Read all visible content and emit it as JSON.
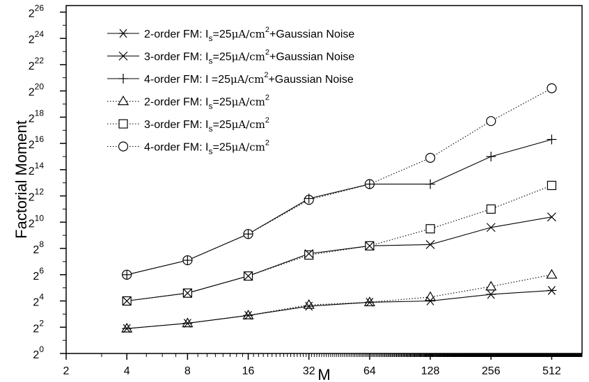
{
  "chart_data": {
    "type": "line",
    "xlabel": "M",
    "ylabel": "Factorial Moment",
    "x_scale": "log2",
    "y_scale": "log2",
    "xlim": [
      2,
      724
    ],
    "ylim_exponent": [
      0,
      26.5
    ],
    "x_ticks": [
      "2",
      "4",
      "8",
      "16",
      "32",
      "64",
      "128",
      "256",
      "512"
    ],
    "y_tick_exponents": [
      "0",
      "2",
      "4",
      "6",
      "8",
      "10",
      "12",
      "14",
      "16",
      "18",
      "20",
      "22",
      "24",
      "26"
    ],
    "y_tick_base": "2",
    "x": [
      4,
      8,
      16,
      32,
      64,
      128,
      256,
      512
    ],
    "series": [
      {
        "name": "2-order FM: I_s=25μA/cm²+Gaussian Noise",
        "legend": {
          "prefix": "2-order FM: I",
          "sub": "s",
          "mid": "=25",
          "unit": "μA/cm",
          "sup": "2",
          "suffix": "+Gaussian Noise"
        },
        "marker": "asterisk",
        "line": "solid",
        "y_exponent": [
          1.9,
          2.3,
          2.9,
          3.6,
          3.9,
          4.0,
          4.5,
          4.8
        ]
      },
      {
        "name": "3-order FM: I_s=25μA/cm²+Gaussian Noise",
        "legend": {
          "prefix": "3-order FM: I",
          "sub": "s",
          "mid": "=25",
          "unit": "μA/cm",
          "sup": "2",
          "suffix": "+Gaussian Noise"
        },
        "marker": "x",
        "line": "solid",
        "y_exponent": [
          4.0,
          4.6,
          5.9,
          7.6,
          8.2,
          8.3,
          9.6,
          10.4
        ]
      },
      {
        "name": "4-order FM: I =25μA/cm²+Gaussian Noise",
        "legend": {
          "prefix": "4-order FM: I ",
          "sub": "",
          "mid": "=25",
          "unit": "μA/cm",
          "sup": "2",
          "suffix": "+Gaussian Noise"
        },
        "marker": "plus",
        "line": "solid",
        "y_exponent": [
          6.0,
          7.1,
          9.1,
          11.8,
          12.9,
          12.9,
          15.0,
          16.3
        ]
      },
      {
        "name": "2-order FM: I_s=25μA/cm²",
        "legend": {
          "prefix": "2-order FM: I",
          "sub": "s",
          "mid": "=25",
          "unit": "μA/cm",
          "sup": "2",
          "suffix": ""
        },
        "marker": "triangle",
        "line": "dotted",
        "y_exponent": [
          1.9,
          2.3,
          2.9,
          3.7,
          3.9,
          4.3,
          5.1,
          6.0
        ]
      },
      {
        "name": "3-order FM: I_s=25μA/cm²",
        "legend": {
          "prefix": "3-order FM: I",
          "sub": "s",
          "mid": "=25",
          "unit": "μA/cm",
          "sup": "2",
          "suffix": ""
        },
        "marker": "square",
        "line": "dotted",
        "y_exponent": [
          4.0,
          4.6,
          5.9,
          7.5,
          8.2,
          9.5,
          11.0,
          12.8
        ]
      },
      {
        "name": "4-order FM: I_s=25μA/cm²",
        "legend": {
          "prefix": "4-order FM: I",
          "sub": "s",
          "mid": "=25",
          "unit": "μA/cm",
          "sup": "2",
          "suffix": ""
        },
        "marker": "circle",
        "line": "dotted",
        "y_exponent": [
          6.0,
          7.1,
          9.1,
          11.7,
          12.9,
          14.9,
          17.7,
          20.2
        ]
      }
    ],
    "legend_placement": "top-left",
    "grid": false
  }
}
